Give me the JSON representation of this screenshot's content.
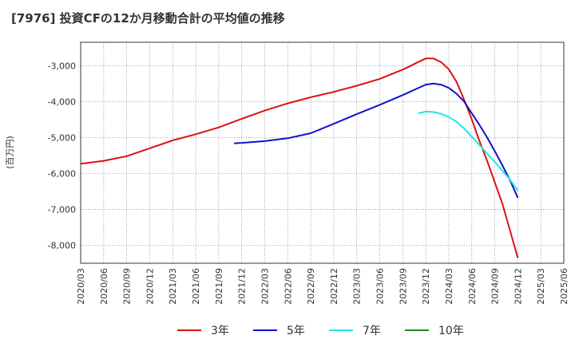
{
  "chart_data": {
    "type": "line",
    "title": "[7976]  投資CFの12か月移動合計の平均値の推移",
    "ylabel": "(百万円)",
    "xlabel": "",
    "ylim": [
      -8500,
      -2350
    ],
    "yticks": [
      -3000,
      -4000,
      -5000,
      -6000,
      -7000,
      -8000
    ],
    "ytick_labels": [
      "-3,000",
      "-4,000",
      "-5,000",
      "-6,000",
      "-7,000",
      "-8,000"
    ],
    "x_tick_labels": [
      "2020/03",
      "2020/06",
      "2020/09",
      "2020/12",
      "2021/03",
      "2021/06",
      "2021/09",
      "2021/12",
      "2022/03",
      "2022/06",
      "2022/09",
      "2022/12",
      "2023/03",
      "2023/06",
      "2023/09",
      "2023/12",
      "2024/03",
      "2024/06",
      "2024/09",
      "2024/12",
      "2025/03",
      "2025/06"
    ],
    "grid": true,
    "legend_position": "bottom",
    "series": [
      {
        "name": "3年",
        "color": "#dd1111",
        "x": [
          "2020/03",
          "2020/06",
          "2020/09",
          "2020/12",
          "2021/03",
          "2021/06",
          "2021/09",
          "2021/12",
          "2022/03",
          "2022/06",
          "2022/09",
          "2022/12",
          "2023/03",
          "2023/06",
          "2023/09",
          "2023/10",
          "2023/11",
          "2023/12",
          "2024/01",
          "2024/02",
          "2024/03",
          "2024/04",
          "2024/05",
          "2024/06",
          "2024/07",
          "2024/08",
          "2024/09",
          "2024/10",
          "2024/11",
          "2024/12"
        ],
        "values": [
          -5730,
          -5650,
          -5520,
          -5300,
          -5080,
          -4910,
          -4720,
          -4480,
          -4250,
          -4050,
          -3880,
          -3730,
          -3560,
          -3370,
          -3110,
          -3010,
          -2900,
          -2800,
          -2800,
          -2900,
          -3100,
          -3450,
          -3950,
          -4500,
          -5100,
          -5650,
          -6250,
          -6850,
          -7600,
          -8350
        ]
      },
      {
        "name": "5年",
        "color": "#1111cc",
        "x": [
          "2021/11",
          "2021/12",
          "2022/03",
          "2022/06",
          "2022/09",
          "2022/12",
          "2023/03",
          "2023/06",
          "2023/09",
          "2023/12",
          "2024/01",
          "2024/02",
          "2024/03",
          "2024/04",
          "2024/05",
          "2024/06",
          "2024/07",
          "2024/08",
          "2024/09",
          "2024/10",
          "2024/11",
          "2024/12"
        ],
        "values": [
          -5160,
          -5150,
          -5100,
          -5020,
          -4880,
          -4620,
          -4350,
          -4090,
          -3820,
          -3530,
          -3500,
          -3530,
          -3620,
          -3780,
          -4000,
          -4330,
          -4650,
          -5000,
          -5380,
          -5780,
          -6200,
          -6680
        ]
      },
      {
        "name": "7年",
        "color": "#22e5e5",
        "x": [
          "2023/11",
          "2023/12",
          "2024/01",
          "2024/02",
          "2024/03",
          "2024/04",
          "2024/05",
          "2024/06",
          "2024/07",
          "2024/08",
          "2024/09",
          "2024/10",
          "2024/11",
          "2024/12"
        ],
        "values": [
          -4330,
          -4280,
          -4290,
          -4340,
          -4430,
          -4560,
          -4750,
          -4980,
          -5210,
          -5450,
          -5680,
          -5930,
          -6180,
          -6480
        ]
      },
      {
        "name": "10年",
        "color": "#228822",
        "x": [],
        "values": []
      }
    ]
  }
}
